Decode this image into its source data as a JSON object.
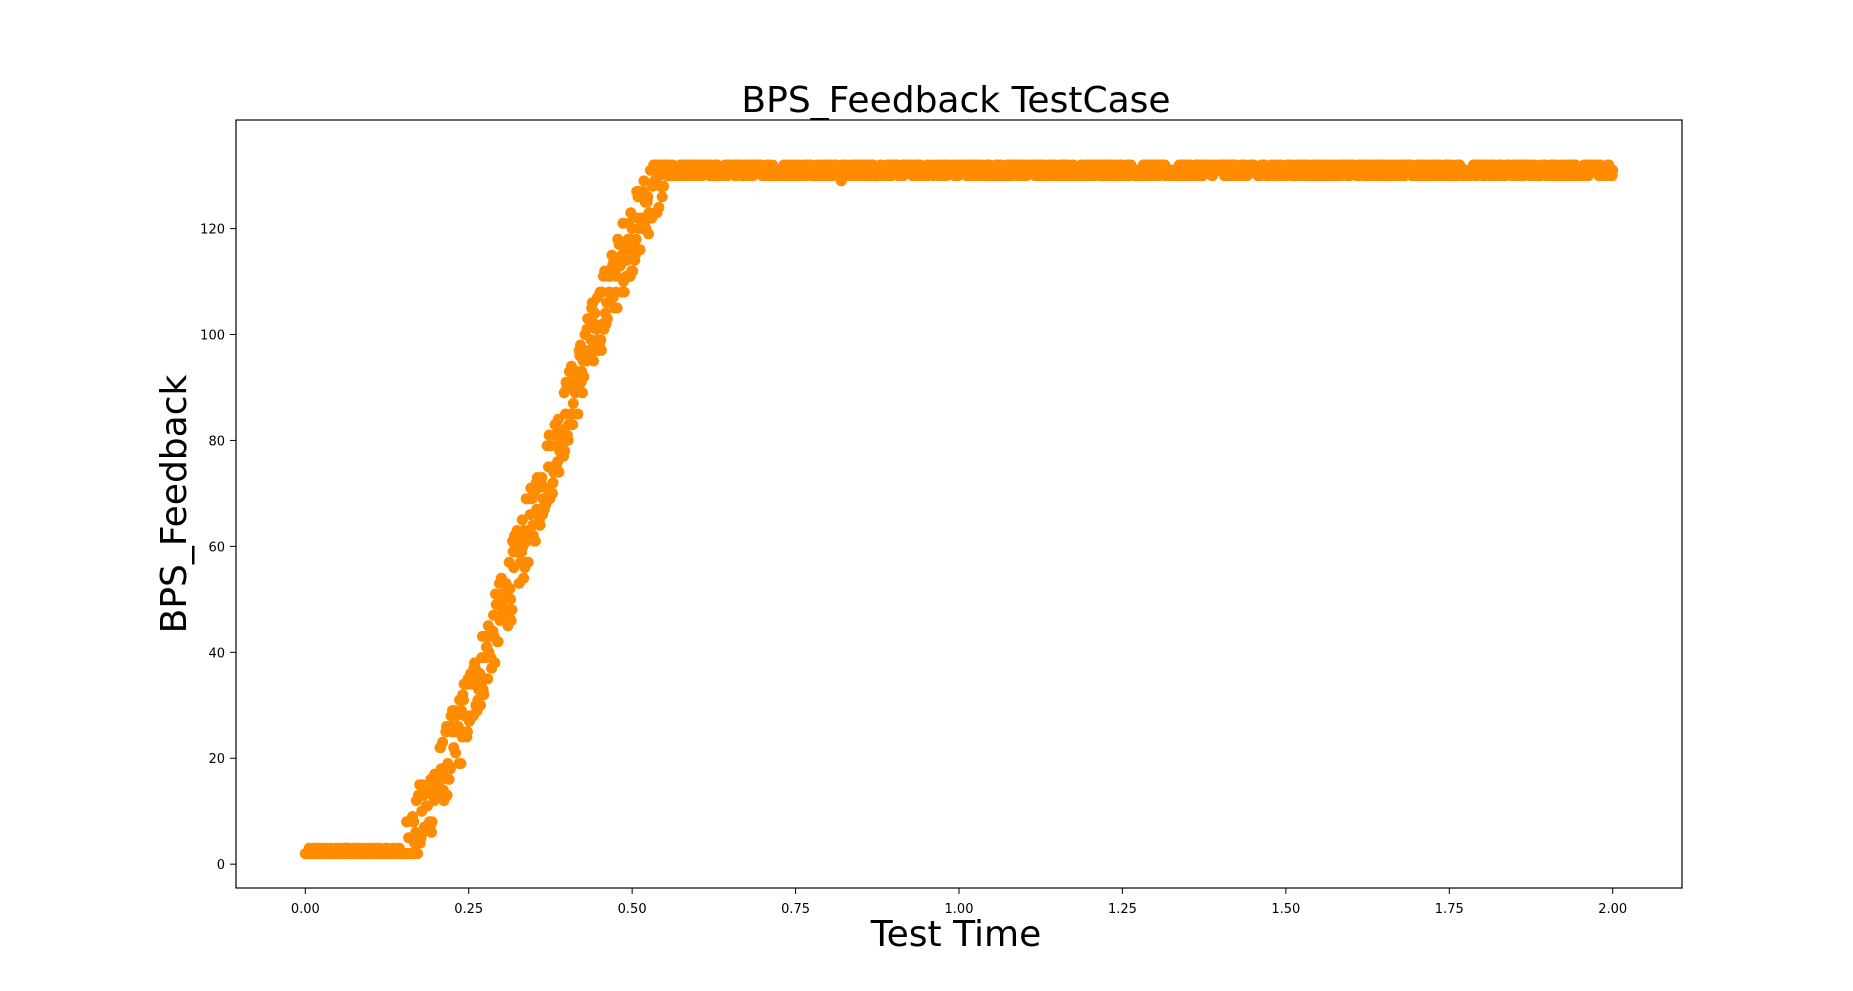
{
  "chart_data": {
    "type": "scatter",
    "title": "BPS_Feedback TestCase",
    "xlabel": "Test Time",
    "ylabel": "BPS_Feedback",
    "xlim": [
      -0.106,
      2.106
    ],
    "ylim": [
      -4.5,
      140.5
    ],
    "xticks": [
      0.0,
      0.25,
      0.5,
      0.75,
      1.0,
      1.25,
      1.5,
      1.75,
      2.0
    ],
    "xtick_labels": [
      "0.00",
      "0.25",
      "0.50",
      "0.75",
      "1.00",
      "1.25",
      "1.50",
      "1.75",
      "2.00"
    ],
    "yticks": [
      0,
      20,
      40,
      60,
      80,
      100,
      120
    ],
    "ytick_labels": [
      "0",
      "20",
      "40",
      "60",
      "80",
      "100",
      "120"
    ],
    "grid": false,
    "marker_color": "#ff8c00",
    "point_count": 2000,
    "profile": {
      "flat_start": {
        "x": [
          0.0,
          0.15
        ],
        "y": 2
      },
      "ramp": {
        "x": [
          0.15,
          0.55
        ],
        "y": [
          2,
          131
        ]
      },
      "plateau": {
        "x": [
          0.55,
          2.0
        ],
        "y": 131
      }
    },
    "outliers": [
      {
        "x": 0.82,
        "y": 129
      }
    ]
  }
}
